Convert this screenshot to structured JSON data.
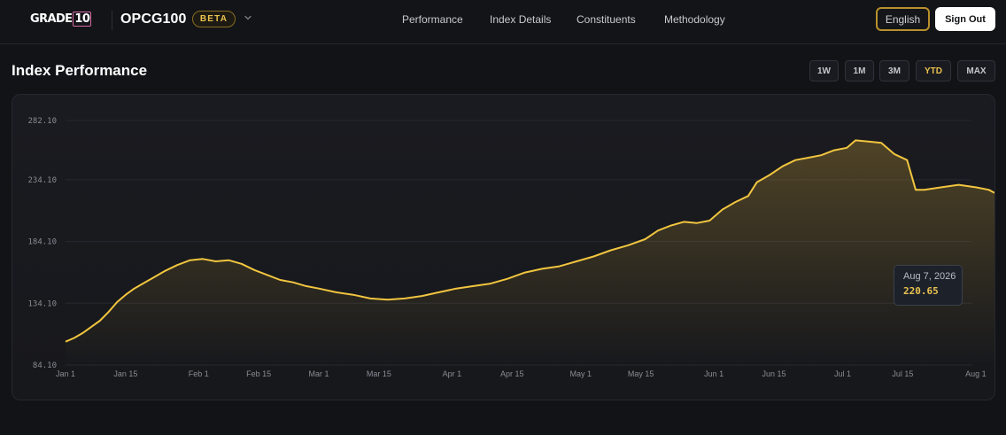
{
  "header": {
    "logo_main": "GRADE",
    "logo_badge": "10",
    "index_name": "OPCG100",
    "badge": "BETA",
    "nav": [
      "Performance",
      "Index Details",
      "Constituents",
      "Methodology"
    ],
    "language_label": "English",
    "signout_label": "Sign Out"
  },
  "page": {
    "title": "Index Performance",
    "ranges": [
      "1W",
      "1M",
      "3M",
      "YTD",
      "MAX"
    ],
    "active_range": "YTD"
  },
  "tooltip": {
    "date": "Aug 7, 2026",
    "value": "220.65"
  },
  "colors": {
    "accent": "#eac250",
    "background": "#121317",
    "line": "#f1c53f"
  },
  "chart_data": {
    "type": "area",
    "title": "",
    "xlabel": "",
    "ylabel": "",
    "year": 2026,
    "y_ticks": [
      "282.10",
      "234.10",
      "184.10",
      "134.10",
      "84.10"
    ],
    "ylim": [
      84.1,
      282.1
    ],
    "x_ticks": [
      "Jan 1",
      "Jan 15",
      "Feb 1",
      "Feb 15",
      "Mar 1",
      "Mar 15",
      "Apr 1",
      "Apr 15",
      "May 1",
      "May 15",
      "Jun 1",
      "Jun 15",
      "Jul 1",
      "Jul 15",
      "Aug 1"
    ],
    "x_tick_dates": [
      "2026-01-01",
      "2026-01-15",
      "2026-02-01",
      "2026-02-15",
      "2026-03-01",
      "2026-03-15",
      "2026-04-01",
      "2026-04-15",
      "2026-05-01",
      "2026-05-15",
      "2026-06-01",
      "2026-06-15",
      "2026-07-01",
      "2026-07-15",
      "2026-08-01"
    ],
    "grid": true,
    "series": [
      {
        "points": [
          [
            "2026-01-01",
            103
          ],
          [
            "2026-01-03",
            106
          ],
          [
            "2026-01-05",
            110
          ],
          [
            "2026-01-07",
            115
          ],
          [
            "2026-01-09",
            120
          ],
          [
            "2026-01-11",
            127
          ],
          [
            "2026-01-13",
            135
          ],
          [
            "2026-01-15",
            141
          ],
          [
            "2026-01-17",
            146
          ],
          [
            "2026-01-19",
            150
          ],
          [
            "2026-01-21",
            154
          ],
          [
            "2026-01-24",
            160
          ],
          [
            "2026-01-27",
            165
          ],
          [
            "2026-01-30",
            169
          ],
          [
            "2026-02-02",
            170
          ],
          [
            "2026-02-05",
            168
          ],
          [
            "2026-02-08",
            169
          ],
          [
            "2026-02-11",
            166
          ],
          [
            "2026-02-14",
            161
          ],
          [
            "2026-02-17",
            157
          ],
          [
            "2026-02-20",
            153
          ],
          [
            "2026-02-23",
            151
          ],
          [
            "2026-02-26",
            148
          ],
          [
            "2026-03-01",
            146
          ],
          [
            "2026-03-05",
            143
          ],
          [
            "2026-03-09",
            141
          ],
          [
            "2026-03-13",
            138
          ],
          [
            "2026-03-17",
            137
          ],
          [
            "2026-03-21",
            138
          ],
          [
            "2026-03-25",
            140
          ],
          [
            "2026-03-29",
            143
          ],
          [
            "2026-04-02",
            146
          ],
          [
            "2026-04-06",
            148
          ],
          [
            "2026-04-10",
            150
          ],
          [
            "2026-04-14",
            154
          ],
          [
            "2026-04-18",
            159
          ],
          [
            "2026-04-22",
            162
          ],
          [
            "2026-04-26",
            164
          ],
          [
            "2026-04-30",
            168
          ],
          [
            "2026-05-04",
            172
          ],
          [
            "2026-05-08",
            177
          ],
          [
            "2026-05-12",
            181
          ],
          [
            "2026-05-16",
            186
          ],
          [
            "2026-05-19",
            193
          ],
          [
            "2026-05-22",
            197
          ],
          [
            "2026-05-25",
            200
          ],
          [
            "2026-05-28",
            199
          ],
          [
            "2026-05-31",
            201
          ],
          [
            "2026-06-03",
            210
          ],
          [
            "2026-06-06",
            216
          ],
          [
            "2026-06-09",
            221
          ],
          [
            "2026-06-11",
            232
          ],
          [
            "2026-06-14",
            238
          ],
          [
            "2026-06-17",
            245
          ],
          [
            "2026-06-20",
            250
          ],
          [
            "2026-06-23",
            252
          ],
          [
            "2026-06-26",
            254
          ],
          [
            "2026-06-29",
            258
          ],
          [
            "2026-07-02",
            260
          ],
          [
            "2026-07-04",
            266
          ],
          [
            "2026-07-07",
            265
          ],
          [
            "2026-07-10",
            264
          ],
          [
            "2026-07-13",
            255
          ],
          [
            "2026-07-16",
            250
          ],
          [
            "2026-07-18",
            226
          ],
          [
            "2026-07-20",
            226
          ],
          [
            "2026-07-24",
            228
          ],
          [
            "2026-07-28",
            230
          ],
          [
            "2026-08-01",
            228
          ],
          [
            "2026-08-04",
            226
          ],
          [
            "2026-08-07",
            220.65
          ]
        ]
      }
    ],
    "marker": {
      "date": "2026-08-07",
      "value": 220.65
    }
  }
}
